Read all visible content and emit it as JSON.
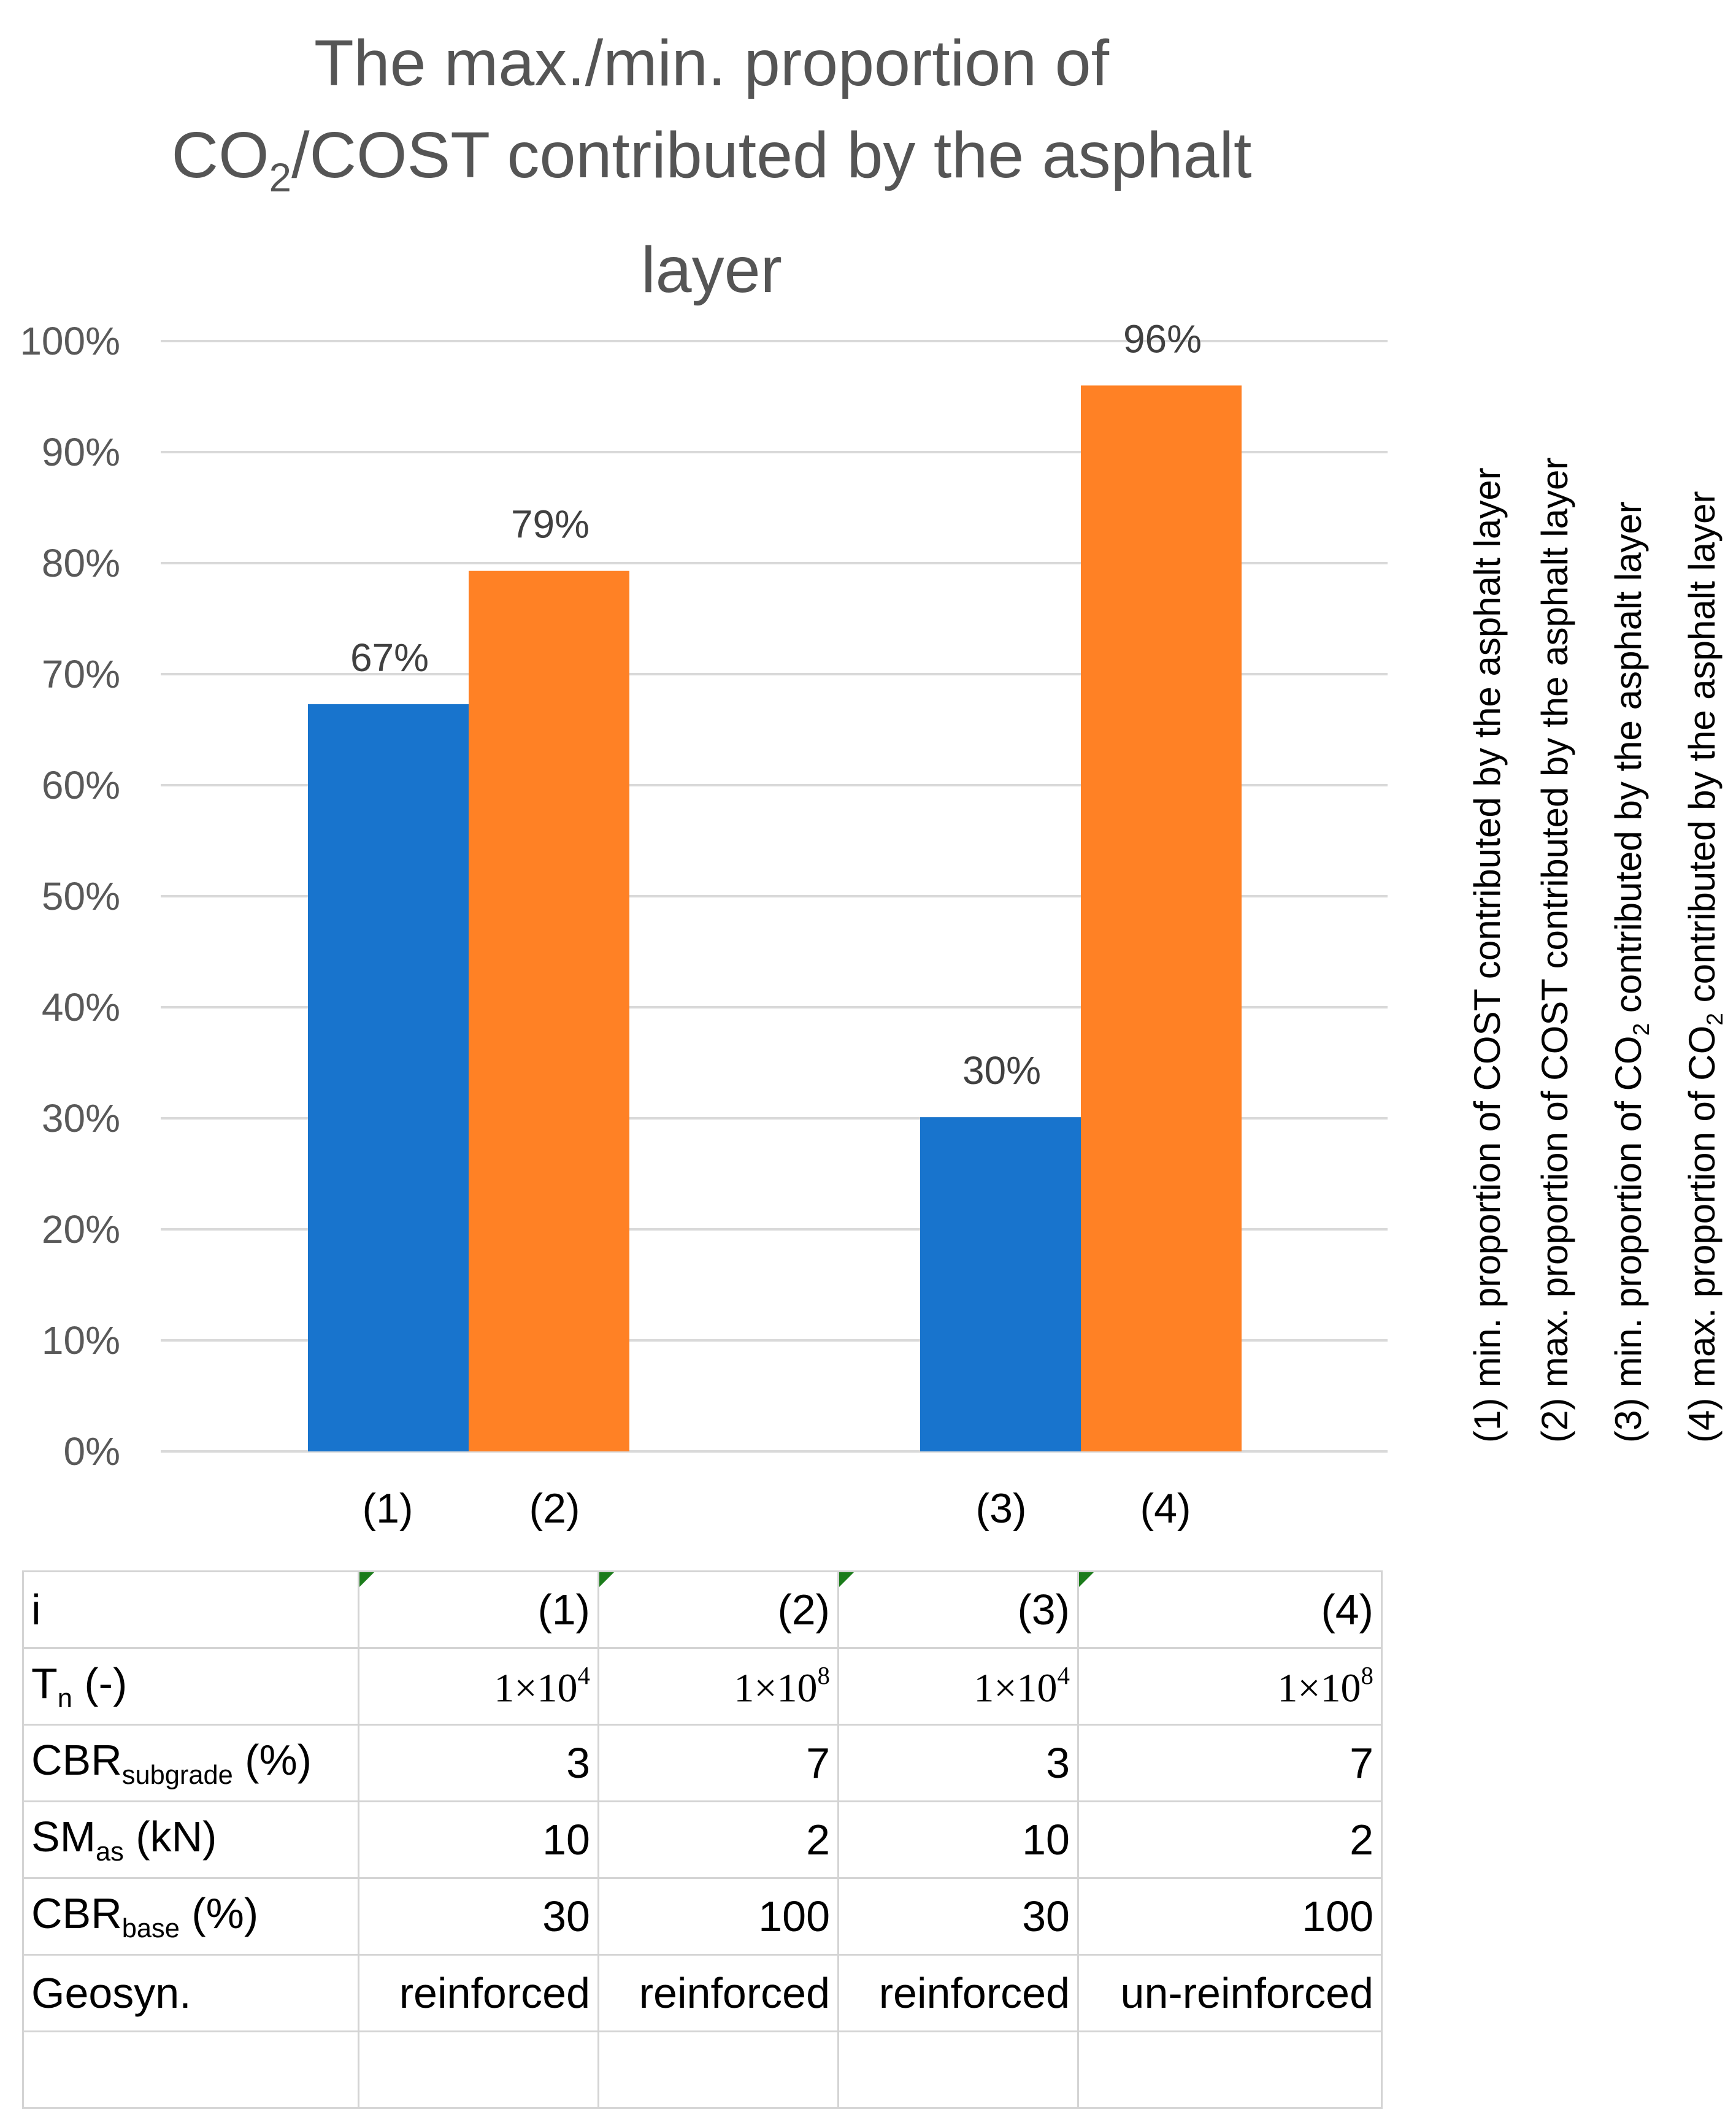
{
  "title_lines": [
    "The max./min. proportion of",
    "CO",
    "2",
    "/COST contributed by the asphalt",
    "layer"
  ],
  "chart_data": {
    "type": "bar",
    "title": "The max./min. proportion of CO2/COST contributed by the asphalt layer",
    "categories": [
      "(1)",
      "(2)",
      "(3)",
      "(4)"
    ],
    "values": [
      67.3,
      79.3,
      30.1,
      96.0
    ],
    "data_labels": [
      "67%",
      "79%",
      "30%",
      "96%"
    ],
    "colors": [
      "#1874CD",
      "#FF8125",
      "#1874CD",
      "#FF8125"
    ],
    "ylim": [
      0,
      100
    ],
    "ytick_values": [
      0,
      10,
      20,
      30,
      40,
      50,
      60,
      70,
      80,
      90,
      100
    ],
    "ytick_labels": [
      "0%",
      "10%",
      "20%",
      "30%",
      "40%",
      "50%",
      "60%",
      "70%",
      "80%",
      "90%",
      "100%"
    ],
    "grid": true,
    "xlabel": "",
    "ylabel": ""
  },
  "legend": [
    {
      "pre": "(1) min. proportion of COST contributed by the asphalt layer",
      "sub": "",
      "post": ""
    },
    {
      "pre": "(2) max. proportion of COST contributed by the asphalt layer",
      "sub": "",
      "post": ""
    },
    {
      "pre": "(3) min. proportion of CO",
      "sub": "2",
      "post": " contributed by the asphalt layer"
    },
    {
      "pre": "(4) max. proportion of CO",
      "sub": "2",
      "post": " contributed by the asphalt layer"
    }
  ],
  "table": {
    "row_i": {
      "label": "i",
      "values": [
        "(1)",
        "(2)",
        "(3)",
        "(4)"
      ]
    },
    "row_tn": {
      "label_main": "T",
      "label_sub": "n",
      "label_post": " (-)",
      "mantissa": "1×10",
      "exponents": [
        "4",
        "8",
        "4",
        "8"
      ]
    },
    "row_cbrs": {
      "label_main": "CBR",
      "label_sub": "subgrade",
      "label_post": " (%)",
      "values": [
        "3",
        "7",
        "3",
        "7"
      ]
    },
    "row_sm": {
      "label_main": "SM",
      "label_sub": "as",
      "label_post": " (kN)",
      "values": [
        "10",
        "2",
        "10",
        "2"
      ]
    },
    "row_cbrb": {
      "label_main": "CBR",
      "label_sub": "base",
      "label_post": " (%)",
      "values": [
        "30",
        "100",
        "30",
        "100"
      ]
    },
    "row_geo": {
      "label": "Geosyn.",
      "values": [
        "reinforced",
        "reinforced",
        "reinforced",
        "un-reinforced"
      ]
    }
  }
}
